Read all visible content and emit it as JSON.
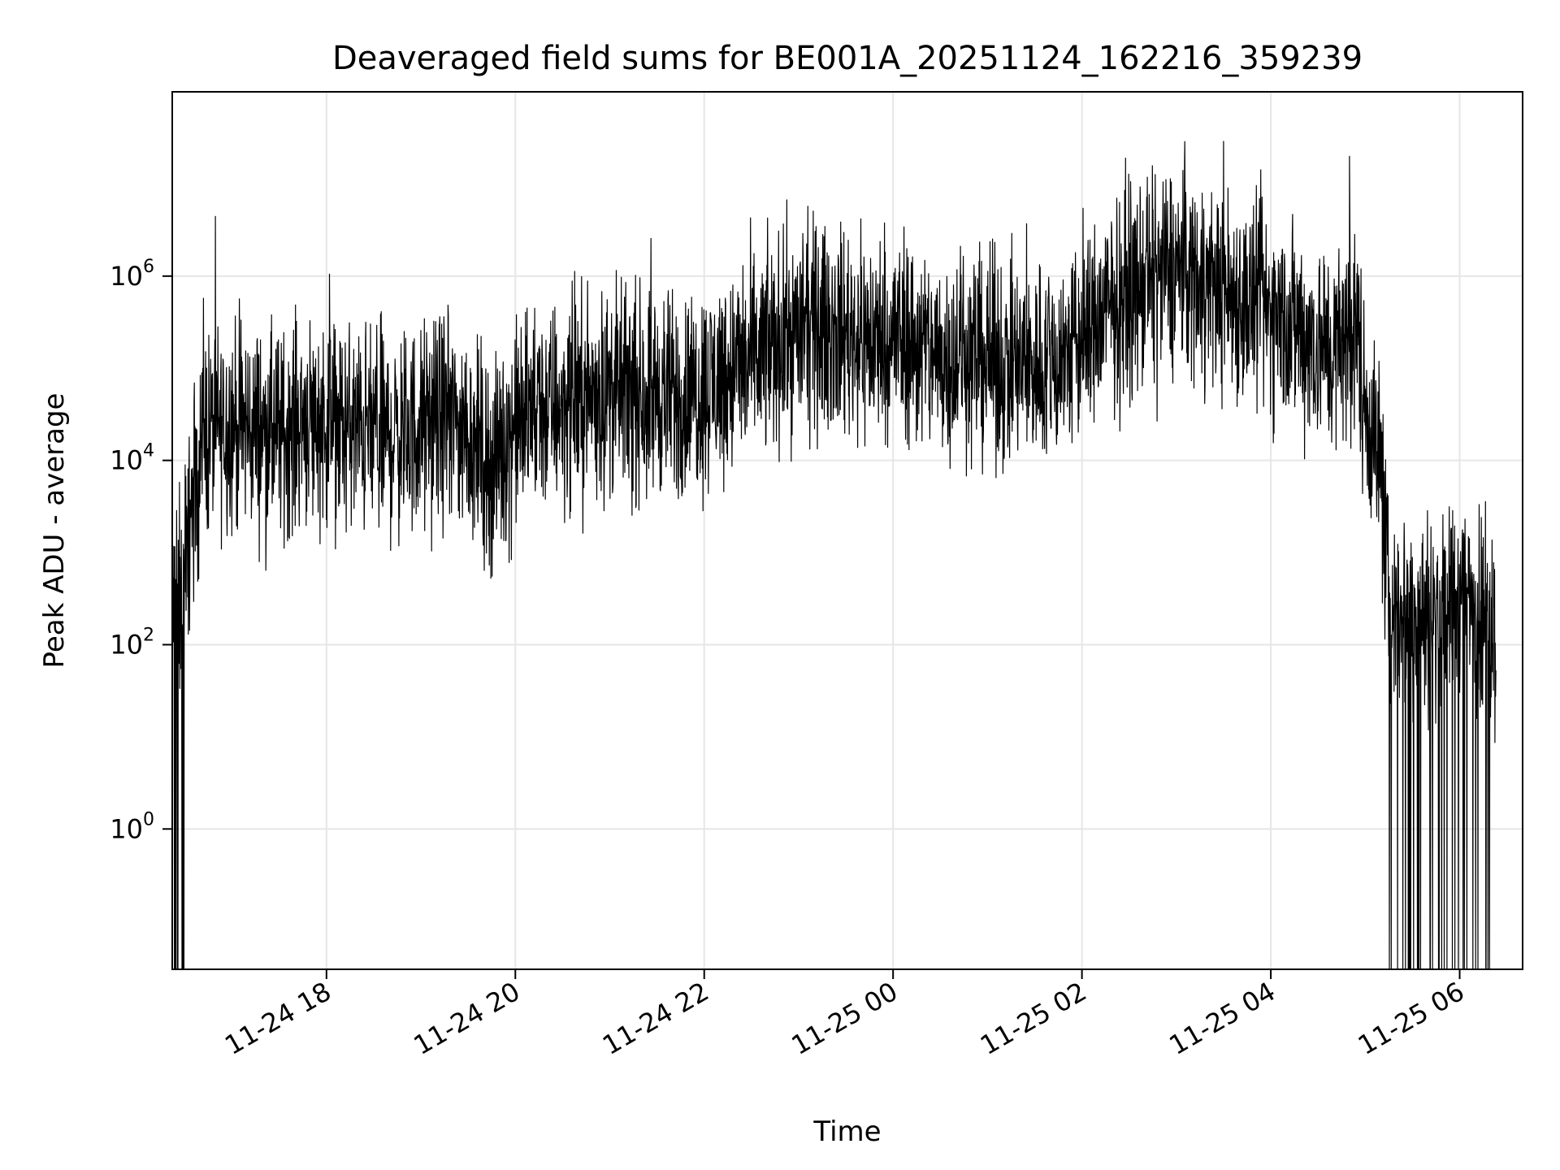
{
  "chart_data": {
    "type": "line",
    "title": "Deaveraged field sums for BE001A_20251124_162216_359239",
    "xlabel": "Time",
    "ylabel": "Peak ADU - average",
    "yscale": "log",
    "x_range": [
      "2025-11-24T16:22:00",
      "2025-11-25T06:40:00"
    ],
    "ylim": [
      0.03,
      100000000
    ],
    "grid": true,
    "line_color": "#000000",
    "x_ticks": [
      {
        "label": "11-24 18",
        "time": "2025-11-24T18:00:00"
      },
      {
        "label": "11-24 20",
        "time": "2025-11-24T20:00:00"
      },
      {
        "label": "11-24 22",
        "time": "2025-11-24T22:00:00"
      },
      {
        "label": "11-25 00",
        "time": "2025-11-25T00:00:00"
      },
      {
        "label": "11-25 02",
        "time": "2025-11-25T02:00:00"
      },
      {
        "label": "11-25 04",
        "time": "2025-11-25T04:00:00"
      },
      {
        "label": "11-25 06",
        "time": "2025-11-25T06:00:00"
      }
    ],
    "y_ticks": [
      {
        "base": "10",
        "exp": "0",
        "value": 1
      },
      {
        "base": "10",
        "exp": "2",
        "value": 100
      },
      {
        "base": "10",
        "exp": "4",
        "value": 10000
      },
      {
        "base": "10",
        "exp": "6",
        "value": 1000000
      }
    ],
    "series": [
      {
        "x": [
          "2025-11-24T16:22:00",
          "2025-11-24T16:26:00",
          "2025-11-24T16:30:00",
          "2025-11-24T16:36:00",
          "2025-11-24T16:42:00",
          "2025-11-24T16:50:00",
          "2025-11-24T17:00:00",
          "2025-11-24T17:15:00",
          "2025-11-24T17:30:00",
          "2025-11-24T17:45:00",
          "2025-11-24T18:00:00",
          "2025-11-24T18:15:00",
          "2025-11-24T18:30:00",
          "2025-11-24T18:45:00",
          "2025-11-24T19:00:00",
          "2025-11-24T19:15:00",
          "2025-11-24T19:30:00",
          "2025-11-24T19:45:00",
          "2025-11-24T20:00:00",
          "2025-11-24T20:15:00",
          "2025-11-24T20:30:00",
          "2025-11-24T20:45:00",
          "2025-11-24T21:00:00",
          "2025-11-24T21:15:00",
          "2025-11-24T21:30:00",
          "2025-11-24T21:45:00",
          "2025-11-24T22:00:00",
          "2025-11-24T22:15:00",
          "2025-11-24T22:30:00",
          "2025-11-24T22:45:00",
          "2025-11-24T23:00:00",
          "2025-11-24T23:15:00",
          "2025-11-24T23:30:00",
          "2025-11-24T23:45:00",
          "2025-11-25T00:00:00",
          "2025-11-25T00:15:00",
          "2025-11-25T00:30:00",
          "2025-11-25T00:45:00",
          "2025-11-25T01:00:00",
          "2025-11-25T01:15:00",
          "2025-11-25T01:30:00",
          "2025-11-25T01:45:00",
          "2025-11-25T02:00:00",
          "2025-11-25T02:15:00",
          "2025-11-25T02:30:00",
          "2025-11-25T02:45:00",
          "2025-11-25T03:00:00",
          "2025-11-25T03:15:00",
          "2025-11-25T03:30:00",
          "2025-11-25T03:45:00",
          "2025-11-25T04:00:00",
          "2025-11-25T04:15:00",
          "2025-11-25T04:30:00",
          "2025-11-25T04:40:00",
          "2025-11-25T04:48:00",
          "2025-11-25T04:55:00",
          "2025-11-25T05:00:00",
          "2025-11-25T05:05:00",
          "2025-11-25T05:10:00",
          "2025-11-25T05:15:00",
          "2025-11-25T05:30:00",
          "2025-11-25T05:45:00",
          "2025-11-25T06:00:00",
          "2025-11-25T06:10:00",
          "2025-11-25T06:15:00",
          "2025-11-25T06:20:00",
          "2025-11-25T06:23:00"
        ],
        "y": [
          200,
          300,
          700,
          5000,
          20000,
          22000,
          25000,
          22000,
          18000,
          30000,
          25000,
          22000,
          20000,
          18000,
          22000,
          30000,
          20000,
          8000,
          25000,
          35000,
          40000,
          50000,
          55000,
          50000,
          55000,
          45000,
          60000,
          90000,
          120000,
          180000,
          250000,
          280000,
          250000,
          200000,
          220000,
          180000,
          130000,
          150000,
          130000,
          100000,
          110000,
          120000,
          200000,
          400000,
          700000,
          900000,
          1200000,
          1000000,
          700000,
          500000,
          400000,
          300000,
          180000,
          150000,
          200000,
          250000,
          40000,
          20000,
          8000,
          300,
          250,
          200,
          300,
          350,
          250,
          200,
          100
        ],
        "spread_decades": 0.55
      }
    ]
  }
}
